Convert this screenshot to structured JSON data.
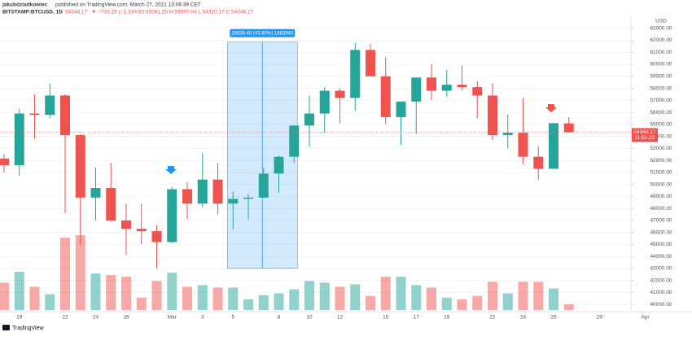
{
  "header": {
    "author": "jakubdziadkowiec",
    "published": "published on TradingView.com, March 27, 2021 13:08:39 CET",
    "symbol": "BITSTAMP:BTCUSD, 1D",
    "last": "54348.17",
    "change": "▼ −733.20 (−1.33%)",
    "ohlc": "O:55081.20 H:55597.04 L:54320.17 C:54348.17"
  },
  "chart_data": {
    "type": "candlestick",
    "currency": "USD",
    "categories": [
      null,
      "19",
      null,
      null,
      "22",
      null,
      "24",
      null,
      "26",
      null,
      null,
      "Mar",
      null,
      "3",
      null,
      "5",
      null,
      null,
      "8",
      null,
      "10",
      null,
      "12",
      null,
      null,
      "15",
      null,
      "17",
      null,
      "19",
      null,
      null,
      "22",
      null,
      "24",
      null,
      "26",
      null,
      null,
      "29",
      null,
      null,
      "Apr"
    ],
    "open": [
      52150,
      51600,
      55900,
      55800,
      57400,
      54100,
      48900,
      49700,
      47000,
      46300,
      46100,
      45200,
      49600,
      48400,
      50400,
      48400,
      48800,
      48900,
      50900,
      52300,
      54900,
      55900,
      57800,
      57200,
      61200,
      59000,
      55600,
      56900,
      58900,
      57800,
      58300,
      58100,
      57400,
      54100,
      54300,
      52300,
      51300,
      55081.2,
      null,
      null,
      null,
      null,
      null
    ],
    "high": [
      52550,
      56300,
      57500,
      58400,
      57500,
      54200,
      51400,
      51800,
      48400,
      48400,
      46600,
      49800,
      50200,
      52600,
      51800,
      49400,
      49200,
      51400,
      52400,
      54900,
      57400,
      58100,
      58000,
      61800,
      61700,
      60600,
      56900,
      58900,
      60000,
      59500,
      59900,
      58600,
      58400,
      55800,
      57200,
      53200,
      55100,
      55597.04,
      null,
      null,
      null,
      null,
      null
    ],
    "low": [
      51000,
      50700,
      53800,
      55500,
      47600,
      45000,
      47000,
      46900,
      44100,
      45000,
      43000,
      45100,
      47100,
      48100,
      47500,
      46300,
      47100,
      48900,
      49300,
      51800,
      53100,
      54300,
      55100,
      56100,
      59000,
      55000,
      53300,
      54200,
      57000,
      57300,
      57800,
      55500,
      53700,
      53000,
      51700,
      50400,
      51300,
      54320.17,
      null,
      null,
      null,
      null,
      null
    ],
    "close": [
      51600,
      55900,
      55800,
      57400,
      54100,
      48900,
      49700,
      47000,
      46300,
      46100,
      45200,
      49600,
      48400,
      50400,
      48400,
      48800,
      48900,
      50900,
      52300,
      54900,
      55900,
      57800,
      57200,
      61200,
      59000,
      55600,
      56900,
      58900,
      57800,
      58300,
      58100,
      57400,
      54100,
      54300,
      52300,
      51300,
      55100,
      54348.17,
      null,
      null,
      null,
      null,
      null
    ],
    "volume": [
      33,
      46,
      28,
      19,
      87,
      90,
      44,
      42,
      40,
      15,
      35,
      45,
      28,
      30,
      27,
      27,
      13,
      18,
      20,
      25,
      35,
      33,
      28,
      31,
      17,
      40,
      40,
      30,
      27,
      15,
      13,
      17,
      34,
      20,
      34,
      34,
      26,
      7,
      null,
      null,
      null,
      null,
      null
    ],
    "up_color": "#26a69a",
    "down_color": "#ef5350",
    "ylim": [
      39400,
      64000
    ],
    "yticks": [
      {
        "value": 40000,
        "label": "40000.00"
      },
      {
        "value": 41000,
        "label": "41000.00"
      },
      {
        "value": 42000,
        "label": "42000.00"
      },
      {
        "value": 43000,
        "label": "43000.00"
      },
      {
        "value": 44000,
        "label": "44000.00"
      },
      {
        "value": 45000,
        "label": "45000.00"
      },
      {
        "value": 46000,
        "label": "46000.00"
      },
      {
        "value": 47000,
        "label": "47000.00"
      },
      {
        "value": 48000,
        "label": "48000.00"
      },
      {
        "value": 49000,
        "label": "49000.00"
      },
      {
        "value": 50000,
        "label": "50000.00"
      },
      {
        "value": 51000,
        "label": "51000.00"
      },
      {
        "value": 52000,
        "label": "52000.00"
      },
      {
        "value": 53000,
        "label": "53000.00"
      },
      {
        "value": 54000,
        "label": "54000.00"
      },
      {
        "value": 55000,
        "label": "55000.00"
      },
      {
        "value": 56000,
        "label": "56000.00"
      },
      {
        "value": 57000,
        "label": "57000.00"
      },
      {
        "value": 58000,
        "label": "58000.00"
      },
      {
        "value": 59000,
        "label": "59000.00"
      },
      {
        "value": 60000,
        "label": "60000.00"
      },
      {
        "value": 61000,
        "label": "61000.00"
      },
      {
        "value": 62000,
        "label": "62000.00"
      },
      {
        "value": 63000,
        "label": "63000.00"
      }
    ],
    "grid": true,
    "last_price": {
      "value": 54348.17,
      "label": "54348.17",
      "countdown": "11:51:22"
    },
    "measure": {
      "from": 43012,
      "to": 61851.4,
      "label": "18839.40 (43.80%) 1883940"
    }
  },
  "footer": {
    "logo": "TradingView"
  }
}
